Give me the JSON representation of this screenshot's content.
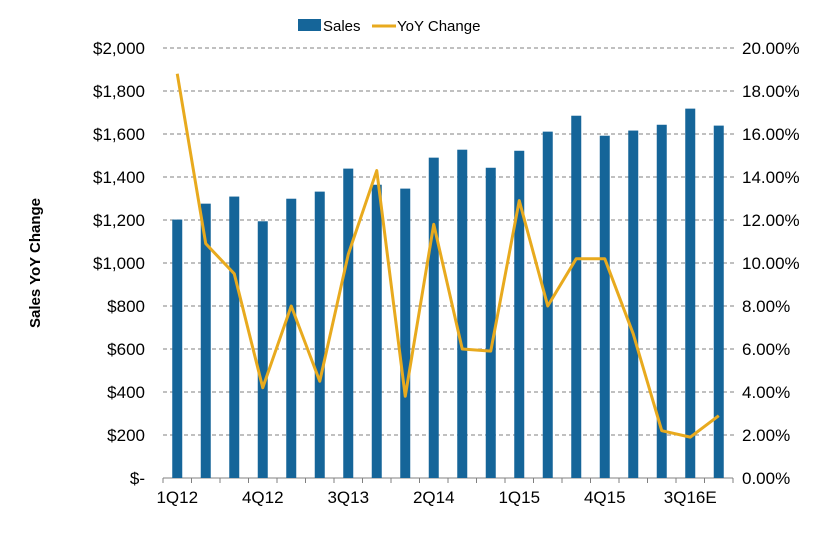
{
  "chart_data": {
    "type": "bar",
    "title": "",
    "ylabel": "Sales YoY Change",
    "categories": [
      "1Q12",
      "2Q12",
      "3Q12",
      "4Q12",
      "1Q13",
      "2Q13",
      "3Q13",
      "4Q13",
      "1Q14",
      "2Q14",
      "3Q14",
      "4Q14",
      "1Q15",
      "2Q15",
      "3Q15",
      "4Q15",
      "1Q16",
      "2Q16",
      "3Q16E",
      "4Q16E"
    ],
    "xtick_labels": [
      "1Q12",
      "4Q12",
      "3Q13",
      "2Q14",
      "1Q15",
      "4Q15",
      "3Q16E"
    ],
    "series": [
      {
        "name": "Sales",
        "type": "bar",
        "axis": "left",
        "color": "#156599",
        "values": [
          1202,
          1276,
          1309,
          1194,
          1299,
          1332,
          1439,
          1364,
          1346,
          1490,
          1527,
          1443,
          1522,
          1611,
          1685,
          1592,
          1616,
          1643,
          1718,
          1639
        ]
      },
      {
        "name": "YoY Change",
        "type": "line",
        "axis": "right",
        "color": "#E8AA1E",
        "values": [
          18.8,
          10.9,
          9.5,
          4.2,
          8.0,
          4.5,
          10.4,
          14.3,
          3.8,
          11.8,
          6.0,
          5.9,
          12.9,
          8.0,
          10.2,
          10.2,
          6.7,
          2.2,
          1.9,
          2.9
        ]
      }
    ],
    "left_axis": {
      "range": [
        0,
        2000
      ],
      "ticks": [
        "$-",
        "$200",
        "$400",
        "$600",
        "$800",
        "$1,000",
        "$1,200",
        "$1,400",
        "$1,600",
        "$1,800",
        "$2,000"
      ]
    },
    "right_axis": {
      "range": [
        0,
        20
      ],
      "ticks": [
        "0.00%",
        "2.00%",
        "4.00%",
        "6.00%",
        "8.00%",
        "10.00%",
        "12.00%",
        "14.00%",
        "16.00%",
        "18.00%",
        "20.00%"
      ]
    },
    "grid": true,
    "legend": "top-center"
  }
}
